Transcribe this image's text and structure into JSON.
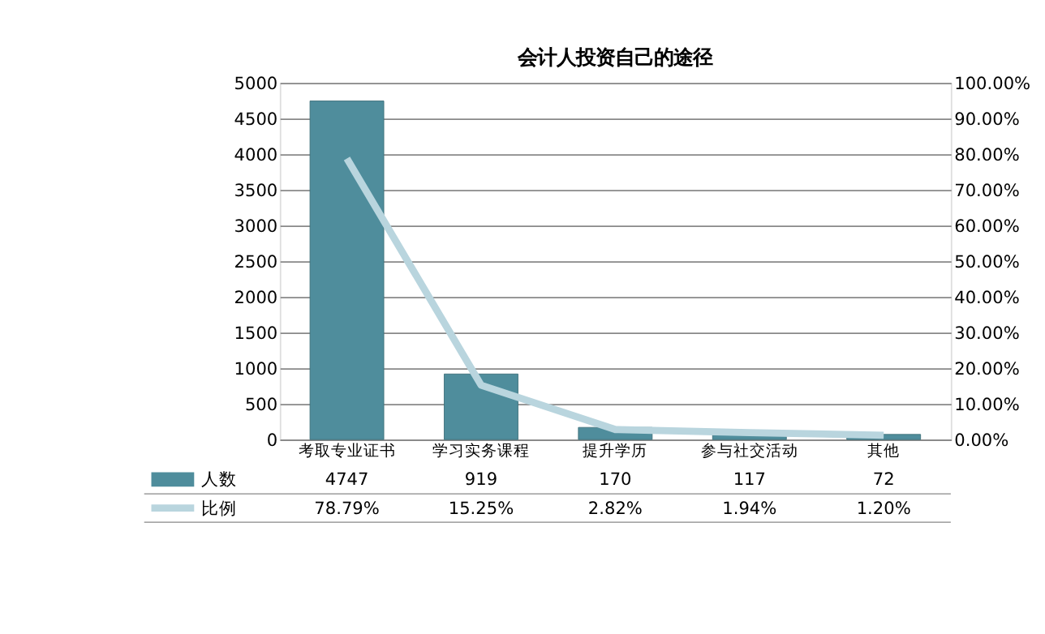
{
  "chart_data": {
    "type": "bar",
    "title": "会计人投资自己的途径",
    "categories": [
      "考取专业证书",
      "学习实务课程",
      "提升学历",
      "参与社交活动",
      "其他"
    ],
    "series": [
      {
        "name": "人数",
        "color": "#4f8d9c",
        "values": [
          4747,
          919,
          170,
          117,
          72
        ],
        "value_labels": [
          "4747",
          "919",
          "170",
          "117",
          "72"
        ]
      },
      {
        "name": "比例",
        "type": "line",
        "axis": "y2",
        "color": "#b9d5de",
        "values": [
          78.79,
          15.25,
          2.82,
          1.94,
          1.2
        ],
        "value_labels": [
          "78.79%",
          "15.25%",
          "2.82%",
          "1.94%",
          "1.20%"
        ]
      }
    ],
    "ylim": [
      0,
      5000
    ],
    "yticks": [
      0,
      500,
      1000,
      1500,
      2000,
      2500,
      3000,
      3500,
      4000,
      4500,
      5000
    ],
    "y2lim": [
      0,
      100
    ],
    "y2ticks": [
      {
        "value": 0,
        "label": "0.00%"
      },
      {
        "value": 10,
        "label": "10.00%"
      },
      {
        "value": 20,
        "label": "20.00%"
      },
      {
        "value": 30,
        "label": "30.00%"
      },
      {
        "value": 40,
        "label": "40.00%"
      },
      {
        "value": 50,
        "label": "50.00%"
      },
      {
        "value": 60,
        "label": "60.00%"
      },
      {
        "value": 70,
        "label": "70.00%"
      },
      {
        "value": 80,
        "label": "80.00%"
      },
      {
        "value": 90,
        "label": "90.00%"
      },
      {
        "value": 100,
        "label": "100.00%"
      }
    ],
    "grid": "y",
    "legend": "bottom",
    "marker": "none",
    "line_style": "solid"
  }
}
